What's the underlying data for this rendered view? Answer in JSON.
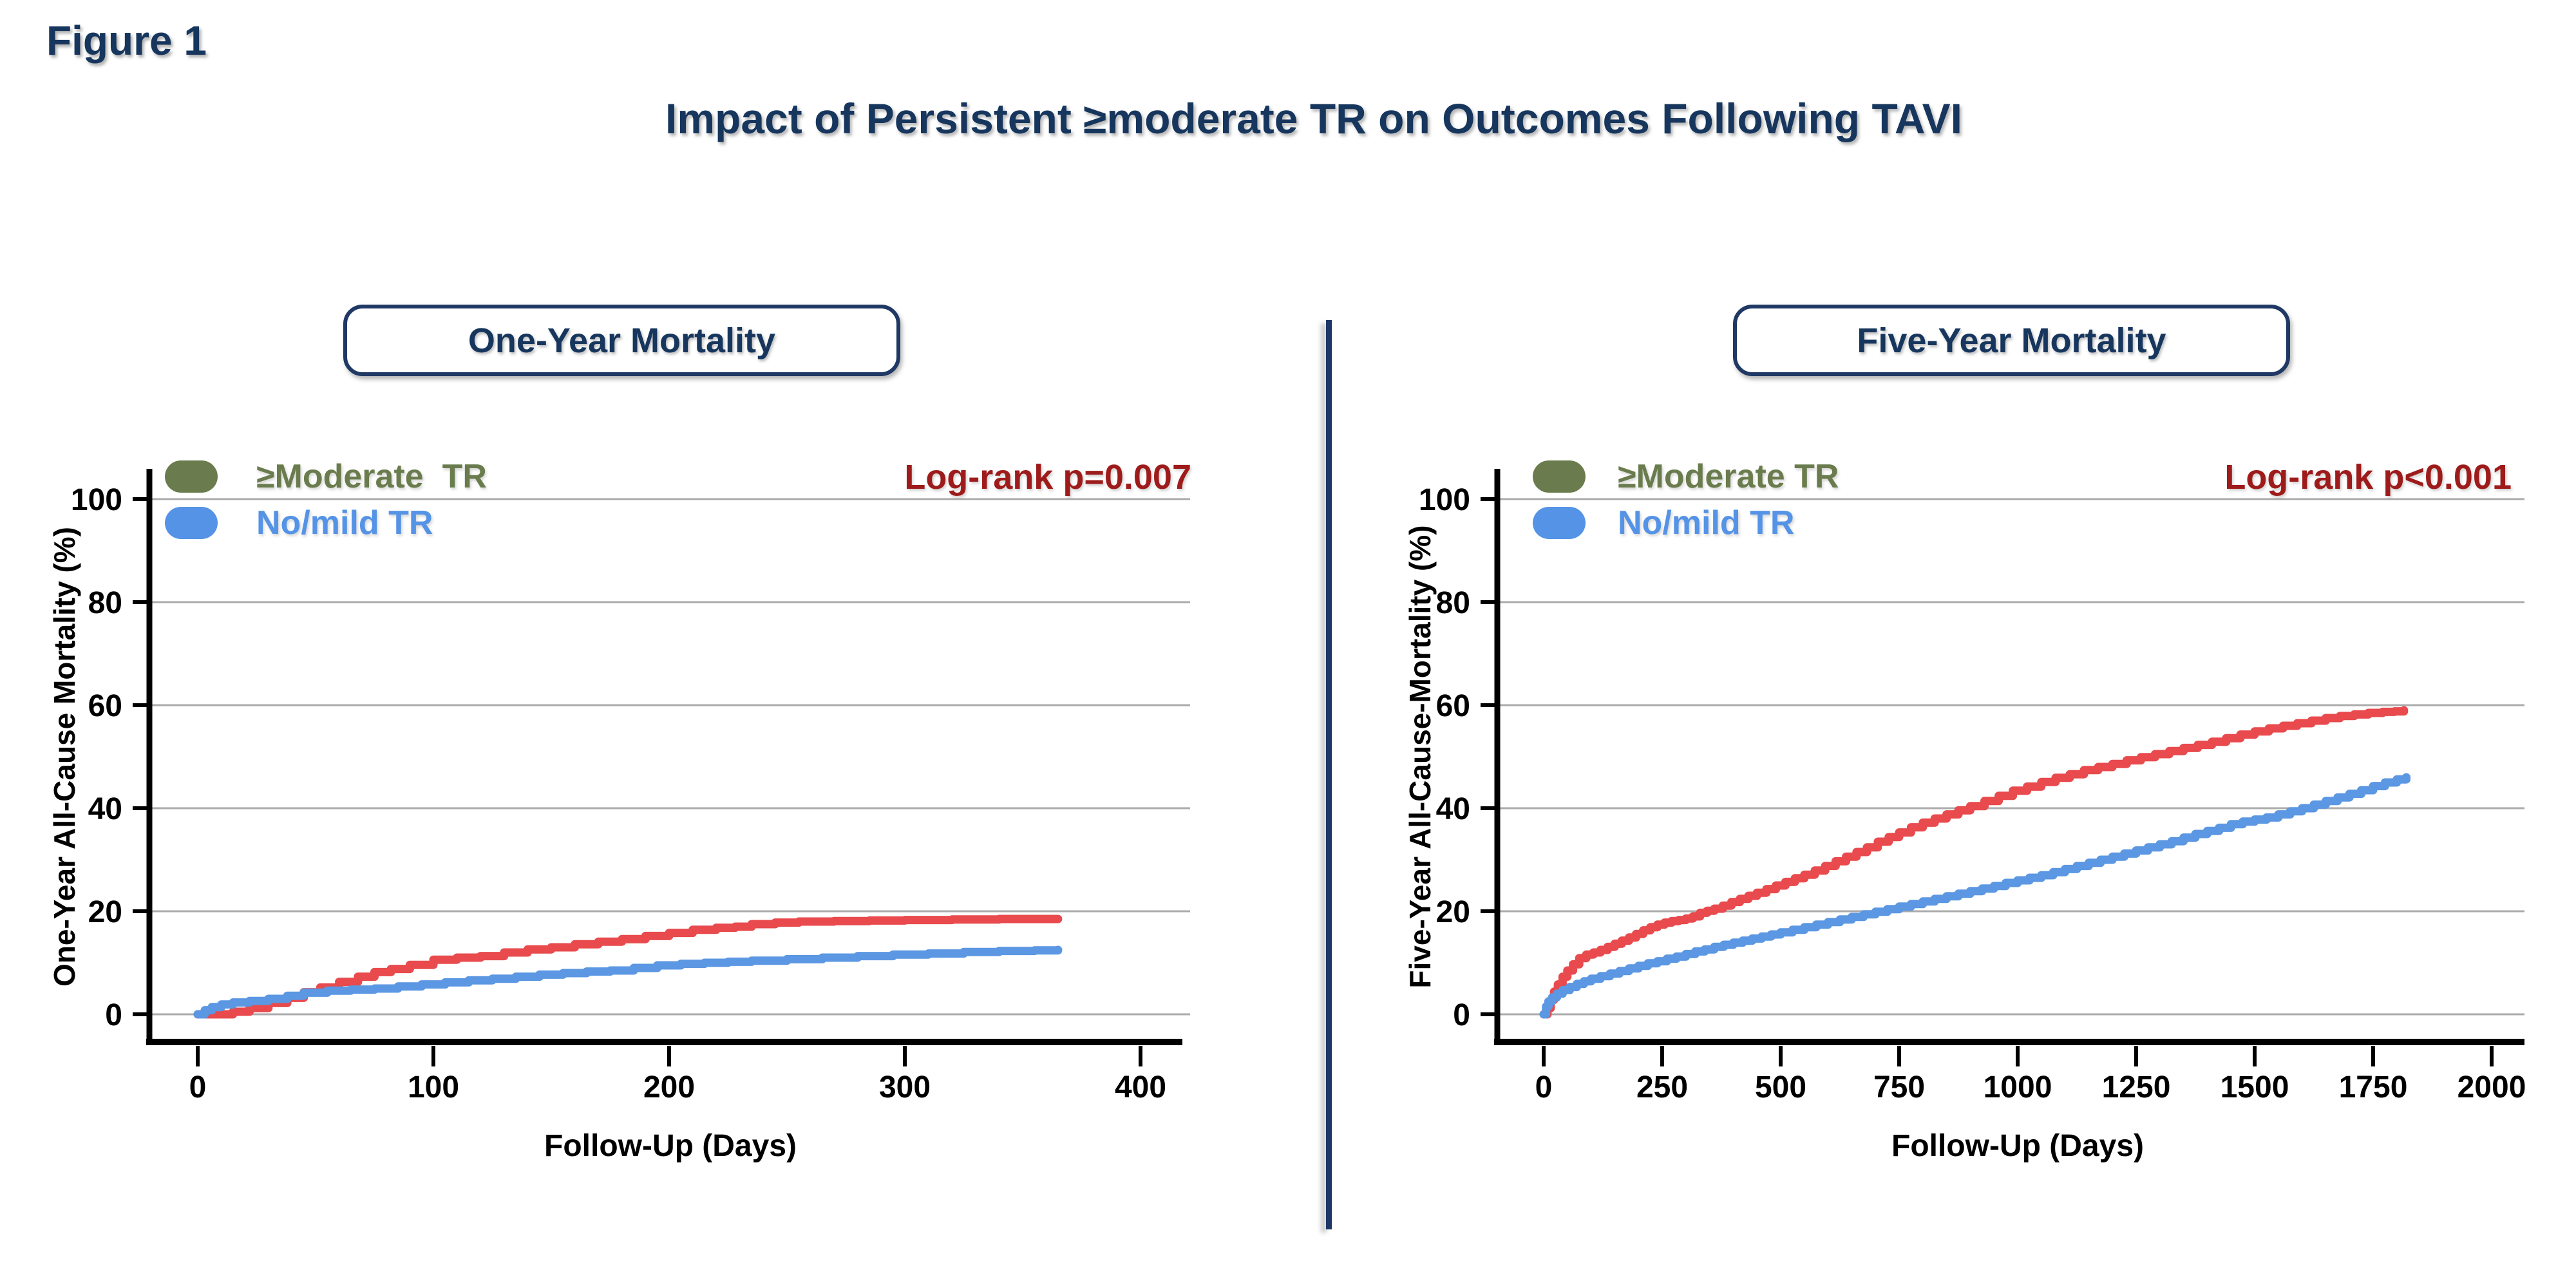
{
  "figure_label": "Figure 1",
  "title": "Impact of Persistent ≥moderate TR on Outcomes Following TAVI",
  "colors": {
    "navy_text": "#17365d",
    "box_border": "#1f3864",
    "divider": "#1b3667",
    "logrank_red": "#9e1b1b",
    "curve_red": "#e84a4d",
    "curve_blue": "#5b97e2",
    "legend_green": "#6a7c4d",
    "legend_blue": "#5593e6",
    "gridline": "#ababab",
    "axis": "#000000"
  },
  "panels": [
    {
      "header": "One-Year Mortality",
      "logrank": "Log-rank p=0.007",
      "ylabel": "One-Year All-Cause Mortality (%)",
      "xlabel": "Follow-Up (Days)",
      "legend": [
        {
          "label": "≥Moderate  TR",
          "color_name": "green"
        },
        {
          "label": "No/mild TR",
          "color_name": "blue"
        }
      ]
    },
    {
      "header": "Five-Year Mortality",
      "logrank": "Log-rank p<0.001",
      "ylabel": "Five-Year All-Cause-Mortality (%)",
      "xlabel": "Follow-Up (Days)",
      "legend": [
        {
          "label": "≥Moderate TR",
          "color_name": "green"
        },
        {
          "label": "No/mild TR",
          "color_name": "blue"
        }
      ]
    }
  ],
  "chart_data": [
    {
      "type": "line",
      "subtype": "kaplan-meier-step",
      "title": "One-Year Mortality",
      "xlabel": "Follow-Up (Days)",
      "ylabel": "One-Year All-Cause Mortality (%)",
      "xlim": [
        0,
        418
      ],
      "ylim": [
        0,
        100
      ],
      "x_ticks": [
        0,
        100,
        200,
        300,
        400
      ],
      "y_ticks": [
        0,
        20,
        40,
        60,
        80,
        100
      ],
      "grid": "horizontal",
      "legend_position": "top-left",
      "annotation": "Log-rank p=0.007",
      "series": [
        {
          "name": "≥Moderate TR",
          "color": "#e84a4d",
          "points": [
            [
              0,
              0
            ],
            [
              8,
              0
            ],
            [
              15,
              0.5
            ],
            [
              22,
              1.2
            ],
            [
              30,
              2.2
            ],
            [
              38,
              3.2
            ],
            [
              45,
              4.3
            ],
            [
              52,
              5.2
            ],
            [
              60,
              6.3
            ],
            [
              68,
              7.3
            ],
            [
              75,
              8.2
            ],
            [
              82,
              8.8
            ],
            [
              90,
              9.6
            ],
            [
              100,
              10.6
            ],
            [
              110,
              11.0
            ],
            [
              120,
              11.3
            ],
            [
              130,
              12.0
            ],
            [
              140,
              12.6
            ],
            [
              150,
              13.0
            ],
            [
              160,
              13.6
            ],
            [
              170,
              14.1
            ],
            [
              180,
              14.6
            ],
            [
              190,
              15.2
            ],
            [
              200,
              15.8
            ],
            [
              210,
              16.4
            ],
            [
              220,
              16.8
            ],
            [
              228,
              17.0
            ],
            [
              235,
              17.5
            ],
            [
              245,
              17.8
            ],
            [
              255,
              18.0
            ],
            [
              270,
              18.1
            ],
            [
              285,
              18.2
            ],
            [
              300,
              18.3
            ],
            [
              320,
              18.4
            ],
            [
              340,
              18.5
            ],
            [
              365,
              18.5
            ]
          ]
        },
        {
          "name": "No/mild TR",
          "color": "#5b97e2",
          "points": [
            [
              0,
              0
            ],
            [
              3,
              0.8
            ],
            [
              6,
              1.4
            ],
            [
              10,
              1.9
            ],
            [
              15,
              2.3
            ],
            [
              22,
              2.6
            ],
            [
              30,
              3.0
            ],
            [
              38,
              3.6
            ],
            [
              45,
              4.2
            ],
            [
              55,
              4.6
            ],
            [
              65,
              4.8
            ],
            [
              75,
              5.0
            ],
            [
              85,
              5.4
            ],
            [
              95,
              5.8
            ],
            [
              105,
              6.2
            ],
            [
              115,
              6.6
            ],
            [
              125,
              6.9
            ],
            [
              135,
              7.3
            ],
            [
              145,
              7.7
            ],
            [
              155,
              8.0
            ],
            [
              165,
              8.3
            ],
            [
              175,
              8.5
            ],
            [
              185,
              9.0
            ],
            [
              195,
              9.5
            ],
            [
              205,
              9.8
            ],
            [
              215,
              10.0
            ],
            [
              225,
              10.2
            ],
            [
              235,
              10.4
            ],
            [
              250,
              10.7
            ],
            [
              265,
              11.0
            ],
            [
              280,
              11.3
            ],
            [
              295,
              11.6
            ],
            [
              310,
              11.8
            ],
            [
              325,
              12.1
            ],
            [
              340,
              12.3
            ],
            [
              355,
              12.4
            ],
            [
              365,
              12.5
            ]
          ]
        }
      ]
    },
    {
      "type": "line",
      "subtype": "kaplan-meier-step",
      "title": "Five-Year Mortality",
      "xlabel": "Follow-Up (Days)",
      "ylabel": "Five-Year All-Cause-Mortality (%)",
      "xlim": [
        0,
        2070
      ],
      "ylim": [
        0,
        100
      ],
      "x_ticks": [
        0,
        250,
        500,
        750,
        1000,
        1250,
        1500,
        1750,
        2000
      ],
      "y_ticks": [
        0,
        20,
        40,
        60,
        80,
        100
      ],
      "grid": "horizontal",
      "legend_position": "top-left",
      "annotation": "Log-rank p<0.001",
      "series": [
        {
          "name": "≥Moderate TR",
          "color": "#e84a4d",
          "points": [
            [
              0,
              0
            ],
            [
              8,
              1.2
            ],
            [
              15,
              2.8
            ],
            [
              22,
              4.4
            ],
            [
              30,
              5.8
            ],
            [
              40,
              7.3
            ],
            [
              50,
              8.5
            ],
            [
              62,
              9.7
            ],
            [
              75,
              10.9
            ],
            [
              90,
              11.6
            ],
            [
              105,
              12.0
            ],
            [
              120,
              12.5
            ],
            [
              135,
              13.1
            ],
            [
              150,
              13.7
            ],
            [
              165,
              14.3
            ],
            [
              180,
              14.9
            ],
            [
              195,
              15.6
            ],
            [
              210,
              16.3
            ],
            [
              225,
              16.9
            ],
            [
              240,
              17.4
            ],
            [
              255,
              17.8
            ],
            [
              270,
              18.1
            ],
            [
              285,
              18.3
            ],
            [
              300,
              18.6
            ],
            [
              315,
              19.0
            ],
            [
              330,
              19.7
            ],
            [
              345,
              20.1
            ],
            [
              360,
              20.5
            ],
            [
              378,
              21.1
            ],
            [
              396,
              21.8
            ],
            [
              414,
              22.4
            ],
            [
              432,
              23.0
            ],
            [
              450,
              23.6
            ],
            [
              470,
              24.3
            ],
            [
              490,
              25.0
            ],
            [
              510,
              25.7
            ],
            [
              530,
              26.4
            ],
            [
              550,
              27.1
            ],
            [
              572,
              27.9
            ],
            [
              594,
              28.8
            ],
            [
              616,
              29.7
            ],
            [
              638,
              30.6
            ],
            [
              660,
              31.5
            ],
            [
              682,
              32.4
            ],
            [
              705,
              33.5
            ],
            [
              728,
              34.4
            ],
            [
              750,
              35.3
            ],
            [
              775,
              36.3
            ],
            [
              800,
              37.2
            ],
            [
              825,
              38.0
            ],
            [
              850,
              38.8
            ],
            [
              875,
              39.6
            ],
            [
              900,
              40.4
            ],
            [
              930,
              41.4
            ],
            [
              960,
              42.4
            ],
            [
              990,
              43.4
            ],
            [
              1020,
              44.2
            ],
            [
              1050,
              45.1
            ],
            [
              1080,
              45.9
            ],
            [
              1110,
              46.6
            ],
            [
              1140,
              47.4
            ],
            [
              1170,
              48.0
            ],
            [
              1200,
              48.6
            ],
            [
              1230,
              49.3
            ],
            [
              1260,
              49.9
            ],
            [
              1290,
              50.5
            ],
            [
              1320,
              51.1
            ],
            [
              1350,
              51.7
            ],
            [
              1380,
              52.3
            ],
            [
              1410,
              52.9
            ],
            [
              1440,
              53.6
            ],
            [
              1470,
              54.3
            ],
            [
              1500,
              54.9
            ],
            [
              1530,
              55.5
            ],
            [
              1560,
              56.0
            ],
            [
              1590,
              56.5
            ],
            [
              1620,
              57.0
            ],
            [
              1650,
              57.5
            ],
            [
              1680,
              57.9
            ],
            [
              1710,
              58.2
            ],
            [
              1740,
              58.5
            ],
            [
              1770,
              58.7
            ],
            [
              1795,
              58.8
            ],
            [
              1815,
              59.0
            ]
          ]
        },
        {
          "name": "No/mild TR",
          "color": "#5b97e2",
          "points": [
            [
              0,
              0
            ],
            [
              5,
              1.5
            ],
            [
              10,
              2.5
            ],
            [
              18,
              3.3
            ],
            [
              28,
              4.0
            ],
            [
              40,
              4.7
            ],
            [
              55,
              5.3
            ],
            [
              70,
              5.9
            ],
            [
              85,
              6.4
            ],
            [
              100,
              6.9
            ],
            [
              120,
              7.4
            ],
            [
              140,
              7.9
            ],
            [
              160,
              8.4
            ],
            [
              180,
              8.9
            ],
            [
              200,
              9.4
            ],
            [
              220,
              9.9
            ],
            [
              240,
              10.3
            ],
            [
              260,
              10.8
            ],
            [
              280,
              11.2
            ],
            [
              300,
              11.7
            ],
            [
              320,
              12.2
            ],
            [
              340,
              12.6
            ],
            [
              360,
              13.1
            ],
            [
              380,
              13.5
            ],
            [
              400,
              13.9
            ],
            [
              420,
              14.3
            ],
            [
              440,
              14.7
            ],
            [
              460,
              15.1
            ],
            [
              480,
              15.5
            ],
            [
              500,
              15.9
            ],
            [
              525,
              16.4
            ],
            [
              550,
              16.9
            ],
            [
              575,
              17.4
            ],
            [
              600,
              17.9
            ],
            [
              625,
              18.4
            ],
            [
              650,
              18.9
            ],
            [
              675,
              19.4
            ],
            [
              700,
              19.9
            ],
            [
              725,
              20.4
            ],
            [
              750,
              20.9
            ],
            [
              775,
              21.4
            ],
            [
              800,
              21.9
            ],
            [
              825,
              22.4
            ],
            [
              850,
              22.9
            ],
            [
              875,
              23.4
            ],
            [
              900,
              23.9
            ],
            [
              925,
              24.4
            ],
            [
              950,
              24.9
            ],
            [
              975,
              25.5
            ],
            [
              1000,
              26.0
            ],
            [
              1025,
              26.5
            ],
            [
              1050,
              27.0
            ],
            [
              1075,
              27.6
            ],
            [
              1100,
              28.2
            ],
            [
              1125,
              28.8
            ],
            [
              1150,
              29.4
            ],
            [
              1175,
              30.0
            ],
            [
              1200,
              30.6
            ],
            [
              1225,
              31.2
            ],
            [
              1250,
              31.8
            ],
            [
              1275,
              32.4
            ],
            [
              1300,
              33.0
            ],
            [
              1325,
              33.6
            ],
            [
              1350,
              34.3
            ],
            [
              1375,
              35.0
            ],
            [
              1400,
              35.6
            ],
            [
              1425,
              36.2
            ],
            [
              1450,
              36.9
            ],
            [
              1475,
              37.4
            ],
            [
              1500,
              37.8
            ],
            [
              1525,
              38.2
            ],
            [
              1550,
              38.8
            ],
            [
              1575,
              39.4
            ],
            [
              1600,
              40.0
            ],
            [
              1625,
              40.7
            ],
            [
              1650,
              41.4
            ],
            [
              1675,
              42.1
            ],
            [
              1700,
              42.8
            ],
            [
              1725,
              43.5
            ],
            [
              1750,
              44.3
            ],
            [
              1775,
              45.0
            ],
            [
              1800,
              45.6
            ],
            [
              1820,
              46.0
            ]
          ]
        }
      ]
    }
  ]
}
